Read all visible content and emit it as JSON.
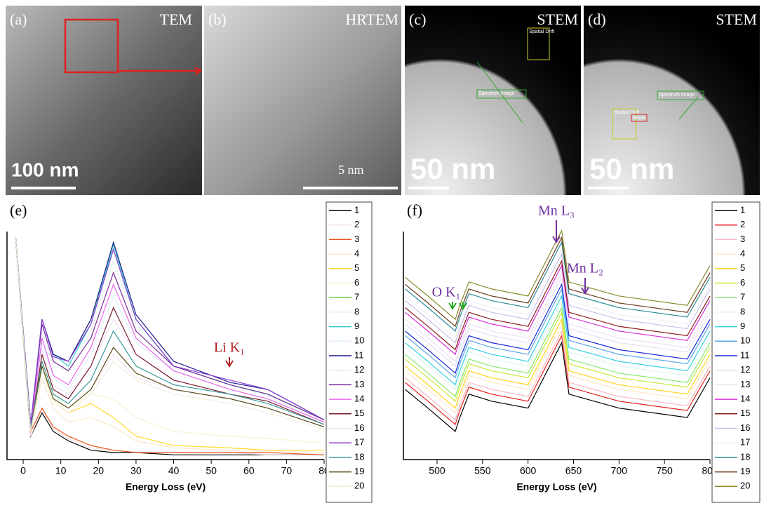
{
  "panels": [
    {
      "label": "(a)",
      "mode": "TEM",
      "scale": "100 nm"
    },
    {
      "label": "(b)",
      "mode": "HRTEM",
      "scale": "5 nm"
    },
    {
      "label": "(c)",
      "mode": "STEM",
      "scale": "50 nm",
      "boxes": [
        "Spatial Drift",
        "Spectrum Image"
      ]
    },
    {
      "label": "(d)",
      "mode": "STEM",
      "scale": "50 nm",
      "boxes": [
        "Spectrum Image",
        "Spatial Drift",
        "Beam"
      ]
    }
  ],
  "chart_data": [
    {
      "type": "line",
      "panel": "(e)",
      "x_label": "Energy Loss (eV)",
      "annotations": [
        "Li K₁"
      ],
      "xlim": [
        -4.3,
        80
      ],
      "xticks": [
        0,
        10,
        20,
        30,
        40,
        50,
        60,
        70,
        80
      ],
      "ylim": [
        0,
        100
      ],
      "x": [
        -2,
        2,
        5,
        8,
        12,
        18,
        24,
        30,
        40,
        55,
        65,
        80
      ],
      "series": [
        {
          "name": "1",
          "color": "#000000",
          "values": [
            95,
            10,
            20,
            12,
            8,
            4,
            3,
            3,
            2,
            2,
            2,
            2
          ]
        },
        {
          "name": "2",
          "color": "#f4e1e1",
          "values": [
            95,
            10,
            22,
            13,
            9,
            5,
            4,
            3,
            3,
            3,
            2,
            2
          ]
        },
        {
          "name": "3",
          "color": "#e8541c",
          "values": [
            95,
            12,
            22,
            14,
            10,
            6,
            4,
            3,
            3,
            3,
            3,
            2
          ]
        },
        {
          "name": "4",
          "color": "#fbe9c8",
          "values": [
            95,
            12,
            35,
            22,
            16,
            18,
            14,
            8,
            5,
            4,
            4,
            3
          ]
        },
        {
          "name": "5",
          "color": "#ffd92e",
          "values": [
            95,
            12,
            40,
            25,
            20,
            24,
            18,
            10,
            6,
            5,
            4,
            4
          ]
        },
        {
          "name": "6",
          "color": "#eef7d0",
          "values": [
            95,
            14,
            45,
            28,
            22,
            28,
            26,
            18,
            12,
            10,
            9,
            7
          ]
        },
        {
          "name": "7",
          "color": "#66dd44",
          "values": [
            95,
            15,
            60,
            45,
            42,
            60,
            90,
            60,
            40,
            32,
            28,
            17
          ]
        },
        {
          "name": "8",
          "color": "#e2f5ee",
          "values": [
            95,
            14,
            55,
            40,
            38,
            55,
            85,
            58,
            40,
            32,
            27,
            16
          ]
        },
        {
          "name": "9",
          "color": "#33cccc",
          "values": [
            95,
            15,
            60,
            45,
            40,
            58,
            92,
            60,
            40,
            32,
            28,
            17
          ]
        },
        {
          "name": "10",
          "color": "#dfeef9",
          "values": [
            95,
            14,
            50,
            35,
            30,
            45,
            70,
            50,
            38,
            30,
            26,
            16
          ]
        },
        {
          "name": "11",
          "color": "#1a1a8c",
          "values": [
            95,
            15,
            60,
            45,
            42,
            60,
            93,
            62,
            42,
            33,
            30,
            17
          ]
        },
        {
          "name": "12",
          "color": "#ebe3f6",
          "values": [
            95,
            14,
            48,
            32,
            28,
            40,
            60,
            45,
            34,
            28,
            24,
            15
          ]
        },
        {
          "name": "13",
          "color": "#7a2a9a",
          "values": [
            95,
            15,
            58,
            42,
            38,
            52,
            80,
            55,
            40,
            32,
            28,
            17
          ]
        },
        {
          "name": "14",
          "color": "#ee66ee",
          "values": [
            95,
            14,
            52,
            36,
            32,
            48,
            75,
            52,
            38,
            30,
            26,
            16
          ]
        },
        {
          "name": "15",
          "color": "#7a1a2a",
          "values": [
            95,
            13,
            45,
            30,
            26,
            40,
            65,
            45,
            34,
            28,
            25,
            15
          ]
        },
        {
          "name": "16",
          "color": "#f3e2ec",
          "values": [
            95,
            13,
            40,
            26,
            22,
            30,
            45,
            35,
            30,
            26,
            22,
            14
          ]
        },
        {
          "name": "17",
          "color": "#8a3ad8",
          "values": [
            95,
            15,
            60,
            44,
            42,
            58,
            90,
            60,
            40,
            34,
            30,
            17
          ]
        },
        {
          "name": "18",
          "color": "#3a9a9a",
          "values": [
            95,
            13,
            42,
            28,
            24,
            34,
            55,
            40,
            32,
            28,
            24,
            15
          ]
        },
        {
          "name": "19",
          "color": "#5a4a1a",
          "values": [
            95,
            12,
            40,
            26,
            22,
            30,
            48,
            37,
            30,
            26,
            22,
            14
          ]
        },
        {
          "name": "20",
          "color": "#eeeedd",
          "values": [
            95,
            12,
            38,
            25,
            20,
            28,
            42,
            34,
            28,
            24,
            20,
            13
          ]
        }
      ]
    },
    {
      "type": "line",
      "panel": "(f)",
      "x_label": "Energy Loss (eV)",
      "annotations": [
        "O K₁",
        "Mn L₃",
        "Mn L₂"
      ],
      "xlim": [
        463,
        800
      ],
      "xticks": [
        500,
        550,
        600,
        650,
        700,
        750,
        800
      ],
      "ylim": [
        0,
        100
      ],
      "x": [
        465,
        490,
        520,
        525,
        535,
        560,
        600,
        637,
        645,
        700,
        775,
        800
      ],
      "series": [
        {
          "name": "1",
          "color": "#000000",
          "values": [
            30,
            22,
            12,
            18,
            28,
            25,
            22,
            50,
            28,
            22,
            18,
            35
          ]
        },
        {
          "name": "2",
          "color": "#e82020",
          "values": [
            33,
            25,
            15,
            21,
            31,
            28,
            25,
            53,
            31,
            25,
            21,
            38
          ]
        },
        {
          "name": "3",
          "color": "#f7b8c0",
          "values": [
            35,
            27,
            17,
            23,
            33,
            30,
            27,
            55,
            33,
            27,
            23,
            40
          ]
        },
        {
          "name": "4",
          "color": "#fbe6c8",
          "values": [
            38,
            30,
            20,
            26,
            36,
            33,
            30,
            58,
            36,
            30,
            26,
            43
          ]
        },
        {
          "name": "5",
          "color": "#ffd21e",
          "values": [
            40,
            32,
            22,
            28,
            38,
            35,
            32,
            60,
            38,
            32,
            28,
            45
          ]
        },
        {
          "name": "6",
          "color": "#c8e83a",
          "values": [
            43,
            35,
            25,
            31,
            41,
            38,
            35,
            63,
            41,
            35,
            31,
            48
          ]
        },
        {
          "name": "7",
          "color": "#88e870",
          "values": [
            45,
            37,
            27,
            33,
            43,
            40,
            37,
            65,
            43,
            37,
            33,
            50
          ]
        },
        {
          "name": "8",
          "color": "#e0f6ec",
          "values": [
            48,
            40,
            30,
            36,
            46,
            43,
            40,
            68,
            46,
            40,
            36,
            53
          ]
        },
        {
          "name": "9",
          "color": "#33d0e0",
          "values": [
            50,
            42,
            32,
            38,
            48,
            45,
            42,
            70,
            48,
            42,
            38,
            55
          ]
        },
        {
          "name": "10",
          "color": "#5aa8e8",
          "values": [
            53,
            45,
            35,
            41,
            51,
            48,
            45,
            73,
            51,
            45,
            41,
            58
          ]
        },
        {
          "name": "11",
          "color": "#1a2ad8",
          "values": [
            55,
            47,
            37,
            43,
            53,
            50,
            47,
            75,
            53,
            47,
            43,
            60
          ]
        },
        {
          "name": "12",
          "color": "#e6e0f6",
          "values": [
            58,
            50,
            40,
            46,
            56,
            53,
            50,
            78,
            56,
            50,
            46,
            63
          ]
        },
        {
          "name": "13",
          "color": "#eee2f4",
          "values": [
            60,
            52,
            42,
            48,
            58,
            55,
            52,
            80,
            58,
            52,
            48,
            65
          ]
        },
        {
          "name": "14",
          "color": "#d830d8",
          "values": [
            63,
            55,
            45,
            51,
            61,
            58,
            55,
            83,
            61,
            55,
            51,
            68
          ]
        },
        {
          "name": "15",
          "color": "#8a1a1a",
          "values": [
            65,
            57,
            47,
            53,
            63,
            60,
            57,
            85,
            63,
            57,
            53,
            70
          ]
        },
        {
          "name": "16",
          "color": "#c8c0ec",
          "values": [
            68,
            60,
            50,
            56,
            66,
            63,
            60,
            88,
            66,
            60,
            56,
            73
          ]
        },
        {
          "name": "17",
          "color": "#eef0f6",
          "values": [
            70,
            62,
            52,
            58,
            68,
            65,
            62,
            90,
            68,
            62,
            58,
            75
          ]
        },
        {
          "name": "18",
          "color": "#2a8a9a",
          "values": [
            73,
            65,
            55,
            61,
            71,
            68,
            65,
            93,
            71,
            65,
            61,
            78
          ]
        },
        {
          "name": "19",
          "color": "#6a3a1a",
          "values": [
            75,
            67,
            57,
            63,
            73,
            70,
            67,
            95,
            73,
            67,
            63,
            80
          ]
        },
        {
          "name": "20",
          "color": "#8a8a2a",
          "values": [
            78,
            70,
            60,
            66,
            76,
            73,
            70,
            98,
            76,
            70,
            66,
            83
          ]
        }
      ]
    }
  ]
}
